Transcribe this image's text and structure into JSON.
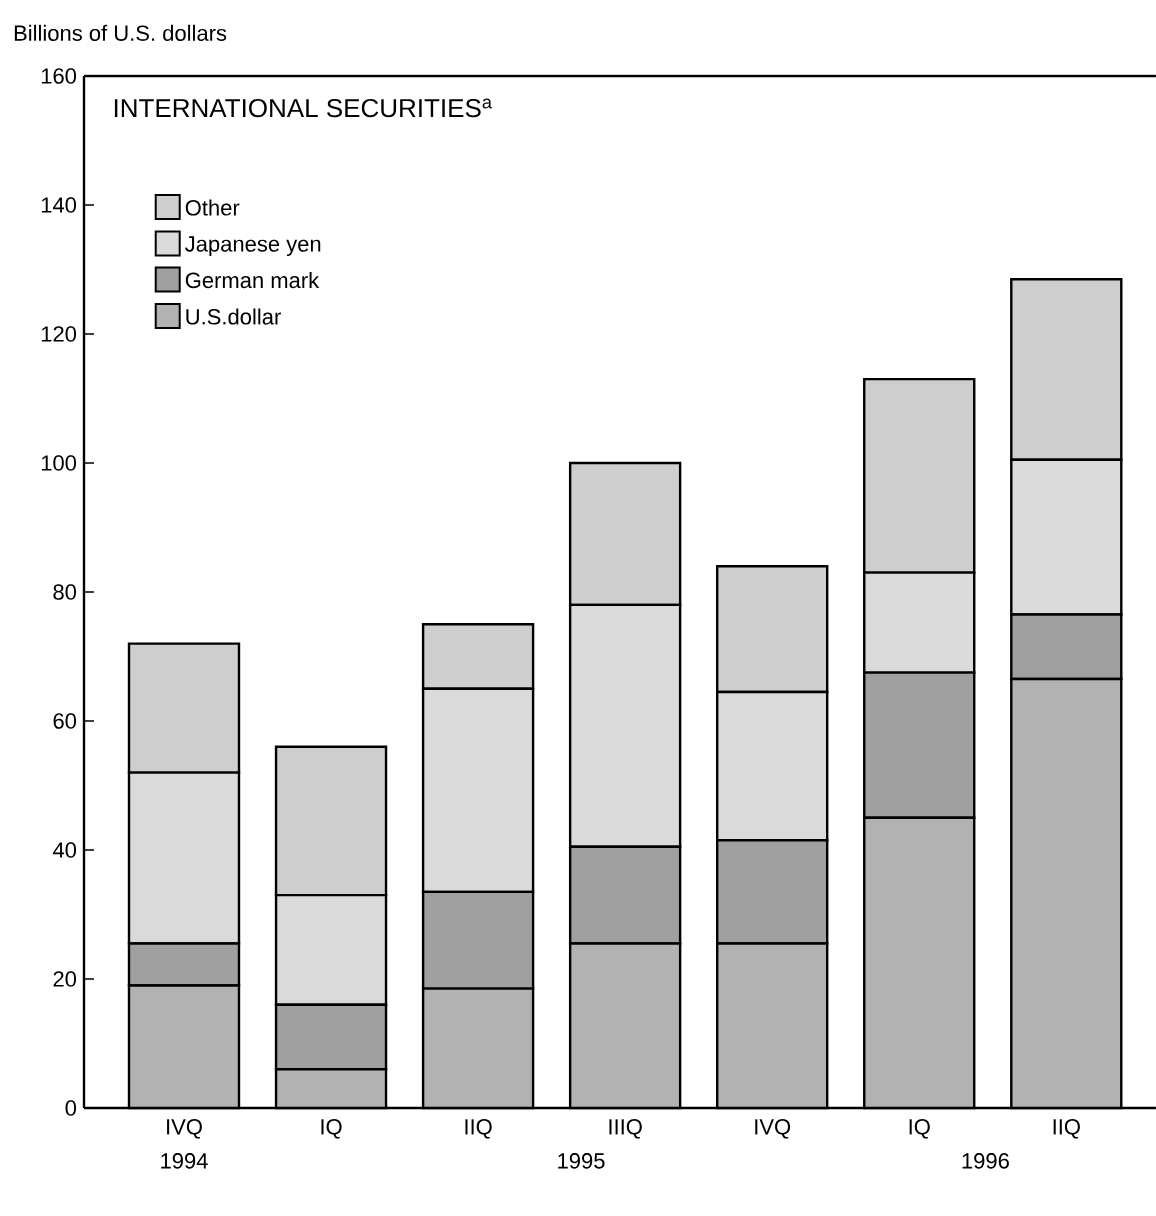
{
  "chart_data": {
    "type": "bar",
    "stacked": true,
    "title": "INTERNATIONAL SECURITIES$^{a}$",
    "ylabel": "Billions of U.S. dollars",
    "categories": [
      "IVQ",
      "IQ",
      "IIQ",
      "IIIQ",
      "IVQ",
      "IQ",
      "IIQ"
    ],
    "series": [
      {
        "name": "U.S.dollar",
        "color": "#b2b2b2",
        "values": [
          19,
          6,
          18.5,
          25.5,
          25.5,
          45,
          66.5
        ]
      },
      {
        "name": "German mark",
        "color": "#a0a0a0",
        "values": [
          6.5,
          10,
          15,
          15,
          16,
          22.5,
          10
        ]
      },
      {
        "name": "Japanese yen",
        "color": "#dadada",
        "values": [
          26.5,
          17,
          31.5,
          37.5,
          23,
          15.5,
          24
        ]
      },
      {
        "name": "Other",
        "color": "#cecece",
        "values": [
          20,
          23,
          10,
          22,
          19.5,
          30,
          28
        ]
      }
    ],
    "ylim": [
      0,
      160
    ],
    "yticks": [
      0,
      20,
      40,
      60,
      80,
      100,
      120,
      140,
      160
    ],
    "legend": "top left",
    "annotations": [
      "1994",
      "1995",
      "1996"
    ]
  }
}
